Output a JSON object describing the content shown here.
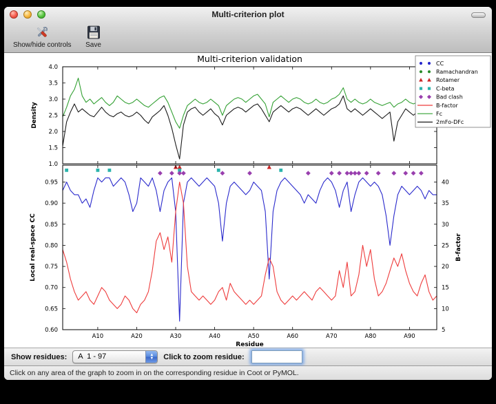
{
  "window": {
    "title": "Multi-criterion plot"
  },
  "toolbar": {
    "buttons": [
      {
        "label": "Show/hide controls",
        "icon": "tools-icon"
      },
      {
        "label": "Save",
        "icon": "save-icon"
      }
    ]
  },
  "controls": {
    "show_residues_label": "Show residues:",
    "residue_range_value": "A  1 - 97",
    "zoom_label": "Click to zoom residue:",
    "zoom_input_value": ""
  },
  "status": {
    "text": "Click on any area of the graph to zoom in on the corresponding residue in Coot or PyMOL."
  },
  "chart_data": {
    "type": "line",
    "title": "Multi-criterion validation",
    "x_label": "Residue",
    "x_range": [
      1,
      97
    ],
    "x_ticks": [
      10,
      20,
      30,
      40,
      50,
      60,
      70,
      80,
      90
    ],
    "x_tick_labels": [
      "A10",
      "A20",
      "A30",
      "A40",
      "A50",
      "A60",
      "A70",
      "A80",
      "A90"
    ],
    "subplots": [
      {
        "ylabel": "Density",
        "ylim": [
          1.0,
          4.0
        ],
        "y_ticks": [
          1.0,
          1.5,
          2.0,
          2.5,
          3.0,
          3.5,
          4.0
        ],
        "y_tick_labels": [
          "1.0",
          "1.5",
          "2.0",
          "2.5",
          "3.0",
          "3.5",
          "4.0"
        ],
        "series": [
          {
            "name": "Fc",
            "color": "#33a033",
            "values": [
              2.45,
              2.75,
              3.1,
              3.3,
              3.65,
              3.1,
              2.9,
              3.0,
              2.85,
              2.95,
              3.05,
              2.9,
              2.8,
              2.9,
              3.1,
              3.0,
              2.9,
              2.85,
              2.9,
              3.0,
              2.9,
              2.8,
              2.75,
              2.85,
              2.95,
              3.05,
              3.1,
              2.9,
              2.6,
              2.3,
              2.1,
              2.5,
              2.8,
              2.9,
              3.0,
              2.9,
              2.85,
              2.9,
              3.0,
              2.9,
              2.8,
              2.5,
              2.8,
              2.9,
              3.0,
              3.05,
              3.0,
              2.9,
              3.0,
              3.1,
              3.15,
              3.0,
              2.85,
              2.45,
              2.9,
              3.0,
              3.1,
              3.0,
              2.9,
              3.0,
              3.05,
              3.0,
              2.9,
              2.85,
              2.9,
              3.0,
              2.9,
              2.85,
              2.9,
              3.0,
              3.05,
              3.15,
              3.35,
              3.0,
              2.9,
              3.0,
              2.9,
              2.85,
              2.9,
              3.0,
              2.9,
              2.85,
              2.8,
              2.85,
              2.9,
              2.75,
              2.85,
              2.9,
              3.0,
              2.9,
              2.85,
              2.9,
              3.5,
              3.2,
              2.9,
              3.0,
              3.1
            ]
          },
          {
            "name": "2mFo-DFc",
            "color": "#1a1a1a",
            "values": [
              1.55,
              2.3,
              2.6,
              2.85,
              2.6,
              2.7,
              2.6,
              2.5,
              2.45,
              2.6,
              2.75,
              2.6,
              2.5,
              2.45,
              2.55,
              2.6,
              2.5,
              2.45,
              2.5,
              2.6,
              2.5,
              2.35,
              2.25,
              2.45,
              2.55,
              2.65,
              2.8,
              2.5,
              2.1,
              1.6,
              1.15,
              2.2,
              2.6,
              2.7,
              2.75,
              2.6,
              2.5,
              2.6,
              2.7,
              2.55,
              2.45,
              2.2,
              2.5,
              2.6,
              2.7,
              2.75,
              2.7,
              2.6,
              2.7,
              2.8,
              2.85,
              2.7,
              2.5,
              2.3,
              2.6,
              2.7,
              2.8,
              2.7,
              2.6,
              2.7,
              2.75,
              2.7,
              2.6,
              2.5,
              2.6,
              2.7,
              2.6,
              2.5,
              2.6,
              2.7,
              2.75,
              2.85,
              3.1,
              2.7,
              2.6,
              2.7,
              2.6,
              2.5,
              2.6,
              2.7,
              2.6,
              2.5,
              2.4,
              2.5,
              2.6,
              1.7,
              2.3,
              2.5,
              2.7,
              2.6,
              2.5,
              2.6,
              3.2,
              2.9,
              2.6,
              2.7,
              2.8
            ]
          }
        ]
      },
      {
        "ylabel_left": "Local real-space CC",
        "ylabel_right": "B-factor",
        "ylim_left": [
          0.6,
          0.99
        ],
        "ylim_right": [
          5,
          44
        ],
        "y_ticks_left": [
          0.6,
          0.65,
          0.7,
          0.75,
          0.8,
          0.85,
          0.9,
          0.95
        ],
        "y_tick_labels_left": [
          "0.60",
          "0.65",
          "0.70",
          "0.75",
          "0.80",
          "0.85",
          "0.90",
          "0.95"
        ],
        "y_ticks_right": [
          5,
          10,
          15,
          20,
          25,
          30,
          35,
          40
        ],
        "y_tick_labels_right": [
          "5",
          "10",
          "15",
          "20",
          "25",
          "30",
          "35",
          "40"
        ],
        "series": [
          {
            "name": "CC",
            "axis": "left",
            "color": "#2929cc",
            "values": [
              0.93,
              0.95,
              0.93,
              0.92,
              0.92,
              0.9,
              0.91,
              0.89,
              0.93,
              0.96,
              0.95,
              0.96,
              0.96,
              0.94,
              0.95,
              0.96,
              0.95,
              0.92,
              0.88,
              0.9,
              0.96,
              0.95,
              0.94,
              0.96,
              0.93,
              0.88,
              0.93,
              0.95,
              0.96,
              0.88,
              0.62,
              0.9,
              0.95,
              0.96,
              0.95,
              0.94,
              0.95,
              0.96,
              0.95,
              0.94,
              0.9,
              0.81,
              0.9,
              0.94,
              0.95,
              0.94,
              0.93,
              0.92,
              0.93,
              0.95,
              0.94,
              0.93,
              0.88,
              0.72,
              0.88,
              0.93,
              0.95,
              0.96,
              0.95,
              0.94,
              0.93,
              0.92,
              0.9,
              0.92,
              0.91,
              0.9,
              0.93,
              0.95,
              0.96,
              0.95,
              0.93,
              0.89,
              0.93,
              0.95,
              0.88,
              0.92,
              0.95,
              0.96,
              0.95,
              0.94,
              0.95,
              0.94,
              0.92,
              0.87,
              0.8,
              0.87,
              0.92,
              0.94,
              0.93,
              0.92,
              0.93,
              0.94,
              0.93,
              0.91,
              0.93,
              0.92,
              0.92
            ]
          },
          {
            "name": "B-factor",
            "axis": "right",
            "color": "#ee3b3b",
            "values": [
              24,
              21,
              17,
              14,
              12,
              13,
              14,
              12,
              11,
              13,
              15,
              14,
              12,
              11,
              10,
              11,
              13,
              12,
              10,
              9,
              11,
              12,
              14,
              19,
              26,
              28,
              24,
              27,
              21,
              33,
              40,
              35,
              20,
              14,
              13,
              12,
              13,
              12,
              11,
              12,
              14,
              15,
              12,
              16,
              14,
              13,
              12,
              11,
              12,
              11,
              12,
              13,
              18,
              22,
              20,
              14,
              12,
              11,
              12,
              13,
              12,
              13,
              14,
              13,
              12,
              14,
              15,
              14,
              13,
              12,
              13,
              19,
              15,
              21,
              13,
              14,
              18,
              25,
              20,
              24,
              17,
              13,
              14,
              16,
              19,
              22,
              20,
              23,
              19,
              16,
              14,
              13,
              16,
              18,
              14,
              12,
              13
            ]
          }
        ],
        "markers": [
          {
            "name": "Rotamer",
            "shape": "triangle",
            "color": "#cc2626",
            "y": 0.985,
            "residues": [
              30,
              31,
              54
            ]
          },
          {
            "name": "C-beta",
            "shape": "square",
            "color": "#2ab3ab",
            "y": 0.978,
            "residues": [
              2,
              10,
              13,
              31,
              41,
              57
            ]
          },
          {
            "name": "Bad clash",
            "shape": "diamond",
            "color": "#993fae",
            "y": 0.971,
            "residues": [
              26,
              29,
              31,
              32,
              42,
              49,
              64,
              70,
              72,
              74,
              75,
              76,
              77,
              79,
              82,
              86,
              89,
              91,
              93
            ]
          }
        ]
      }
    ],
    "legend": [
      {
        "label": "CC",
        "shape": "circle",
        "color": "#2929cc"
      },
      {
        "label": "Ramachandran",
        "shape": "circle",
        "color": "#2a8c2a"
      },
      {
        "label": "Rotamer",
        "shape": "triangle",
        "color": "#cc2626"
      },
      {
        "label": "C-beta",
        "shape": "square",
        "color": "#2ab3ab"
      },
      {
        "label": "Bad clash",
        "shape": "diamond",
        "color": "#993fae"
      },
      {
        "label": "B-factor",
        "shape": "line",
        "color": "#ee3b3b"
      },
      {
        "label": "Fc",
        "shape": "line",
        "color": "#33a033"
      },
      {
        "label": "2mFo-DFc",
        "shape": "line",
        "color": "#1a1a1a"
      }
    ]
  }
}
